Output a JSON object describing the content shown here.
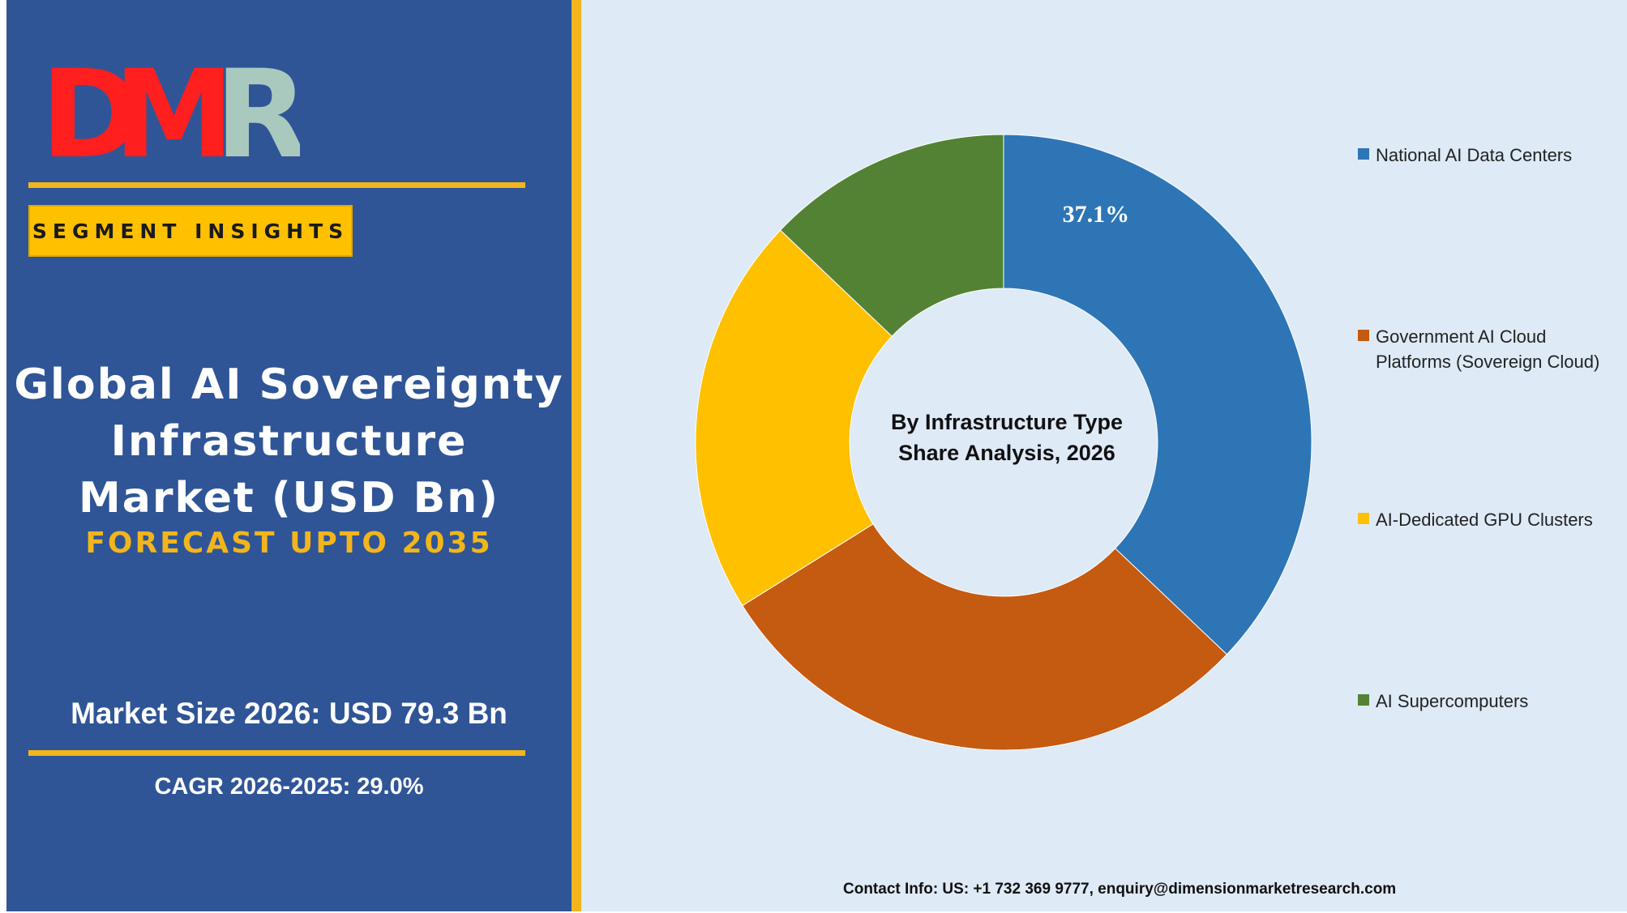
{
  "logo": {
    "text": "DMR",
    "letters": [
      "D",
      "M",
      "R"
    ],
    "colors": {
      "d": "#ff1f1f",
      "m": "#ff1f1f",
      "r": "#a9c9bf",
      "shadow": "#b9d3cc"
    }
  },
  "badge": {
    "label": "SEGMENT INSIGHTS"
  },
  "title": {
    "line1": "Global AI Sovereignty",
    "line2": "Infrastructure",
    "line3": "Market (USD Bn)"
  },
  "forecast": "FORECAST UPTO 2035",
  "market_size": "Market Size 2026: USD 79.3 Bn",
  "cagr": "CAGR 2026-2025: 29.0%",
  "contact": "Contact Info: US: +1 732 369 9777, enquiry@dimensionmarketresearch.com",
  "colors": {
    "panel": "#2f5597",
    "gold": "#f2b51c",
    "background": "#deeaf6"
  },
  "chart_data": {
    "type": "pie",
    "donut": true,
    "center_label": [
      "By Infrastructure Type",
      "Share Analysis, 2026"
    ],
    "legend_position": "right",
    "slices": [
      {
        "label": "National AI Data Centers",
        "value": 37.1,
        "color": "#2e75b6",
        "data_label": "37.1%"
      },
      {
        "label": "Government AI Cloud Platforms (Sovereign Cloud)",
        "value": 29.0,
        "color": "#c55a11",
        "data_label": ""
      },
      {
        "label": "AI-Dedicated GPU Clusters",
        "value": 21.0,
        "color": "#ffc000",
        "data_label": ""
      },
      {
        "label": "AI Supercomputers",
        "value": 12.9,
        "color": "#548235",
        "data_label": ""
      }
    ]
  }
}
